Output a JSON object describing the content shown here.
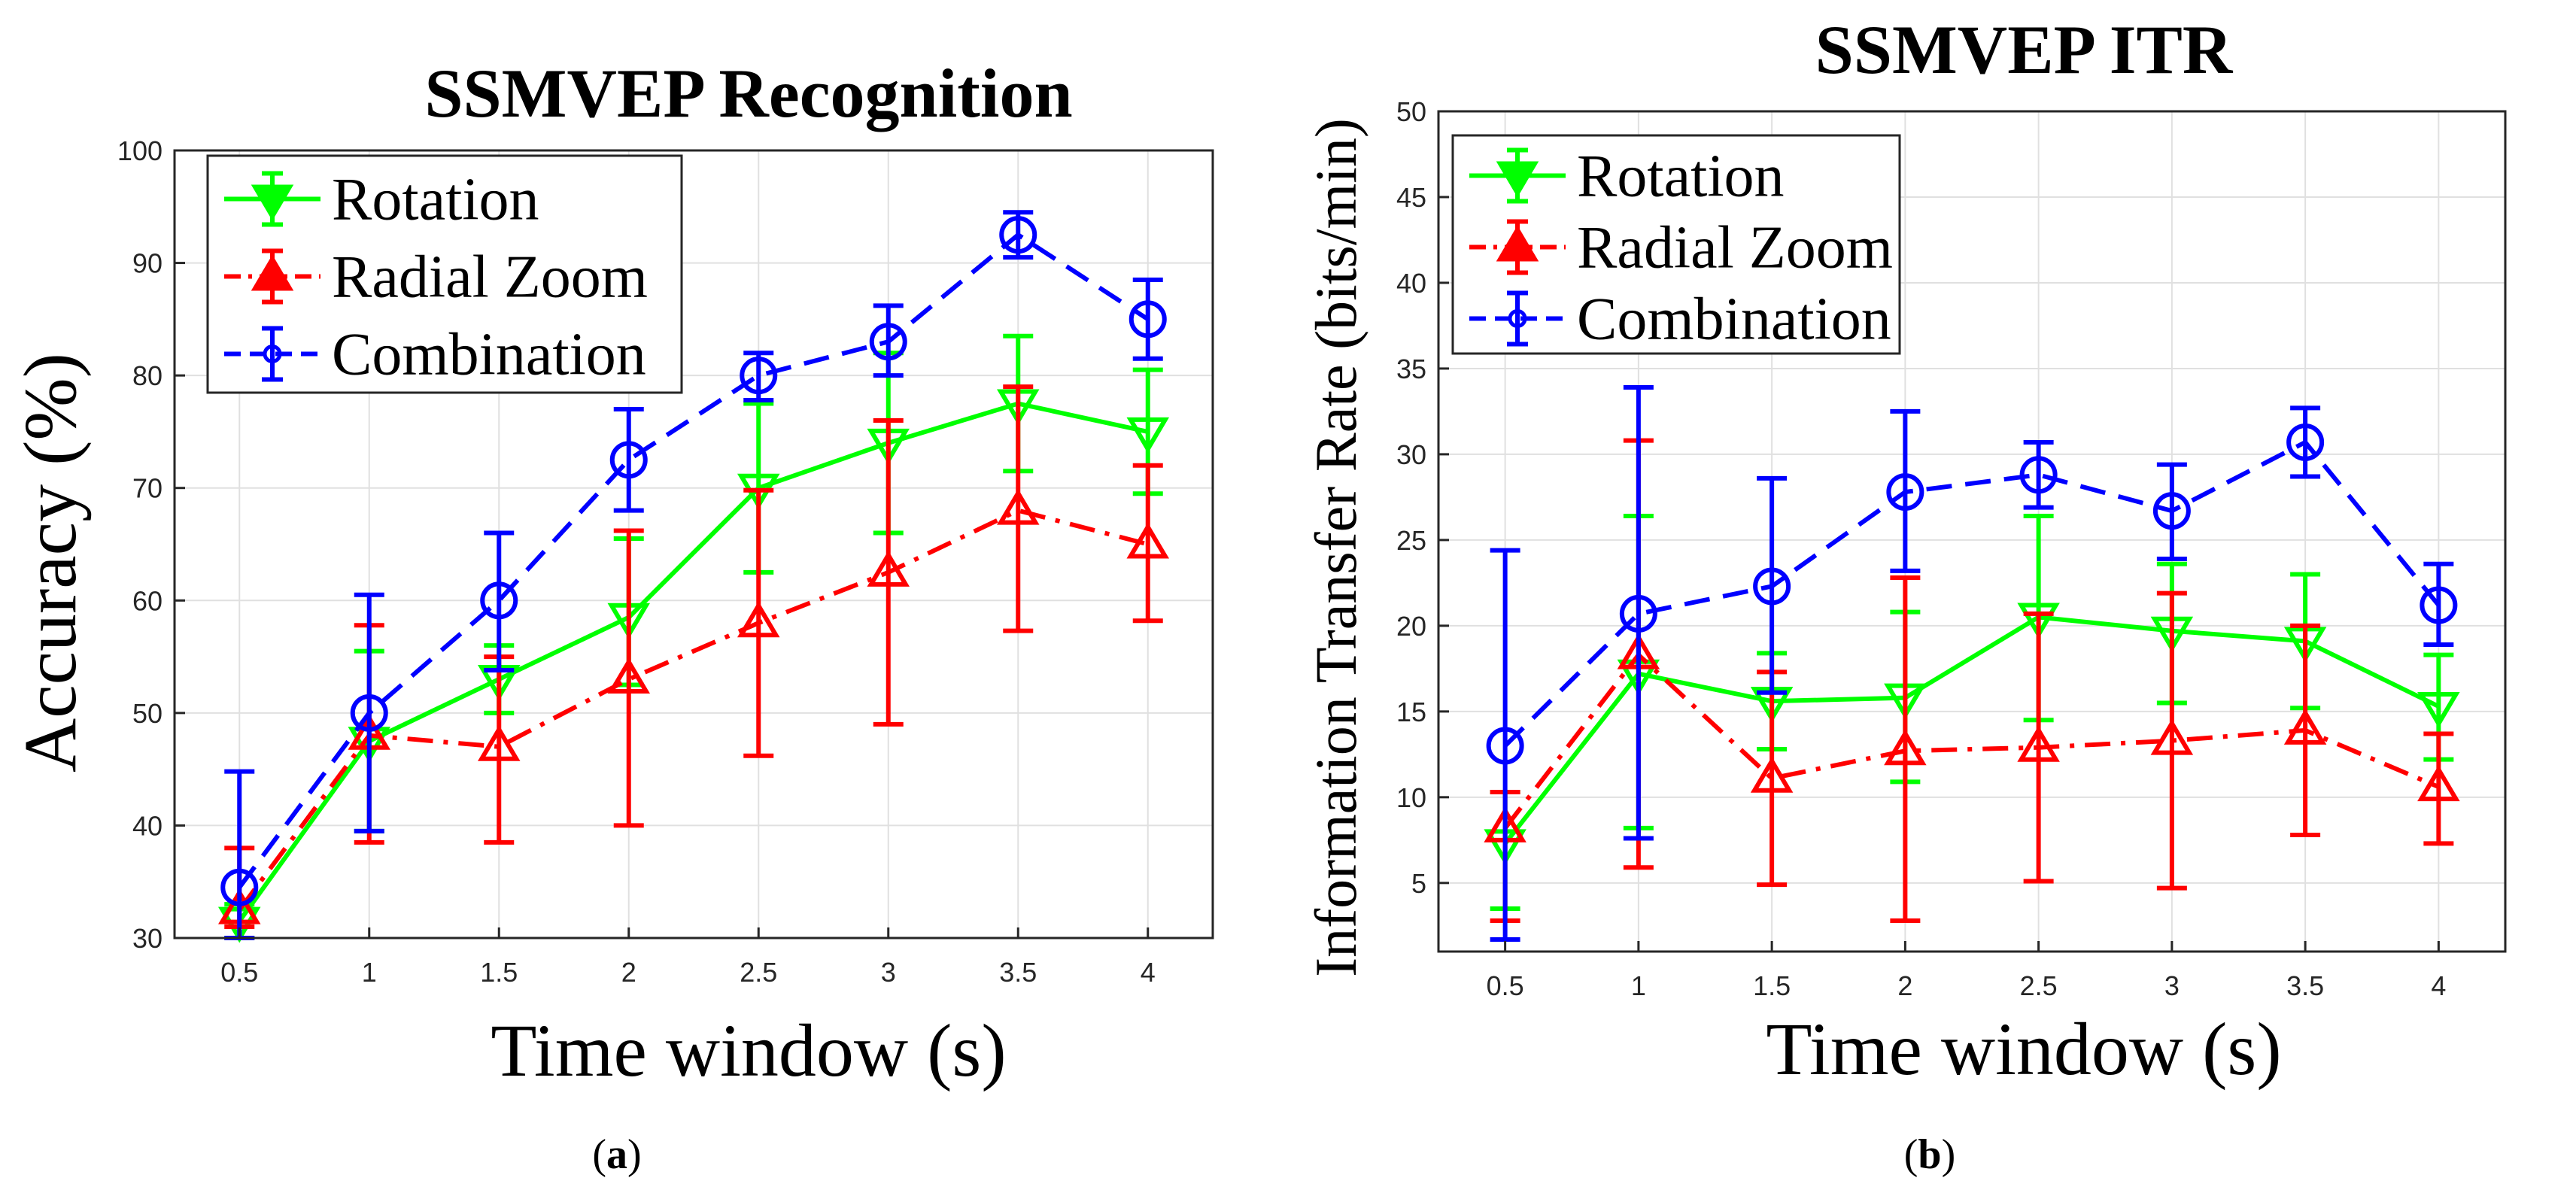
{
  "chart_data": [
    {
      "type": "line",
      "title": "SSMVEP Recognition",
      "xlabel": "Time window (s)",
      "ylabel": "Accuracy (%)",
      "caption_letter": "a",
      "x": [
        0.5,
        1,
        1.5,
        2,
        2.5,
        3,
        3.5,
        4
      ],
      "x_tick_labels": [
        "0.5",
        "1",
        "1.5",
        "2",
        "2.5",
        "3",
        "3.5",
        "4"
      ],
      "xlim": [
        0.25,
        4.25
      ],
      "ylim": [
        30,
        100
      ],
      "y_ticks": [
        30,
        40,
        50,
        60,
        70,
        80,
        90,
        100
      ],
      "grid": true,
      "legend_position": "top-left",
      "series": [
        {
          "name": "Rotation",
          "color": "#00ff00",
          "marker": "triangle-down",
          "line": "solid",
          "values": [
            31.5,
            47.5,
            53,
            58.5,
            70,
            74,
            77.5,
            75
          ],
          "err_low": [
            30,
            39.5,
            50,
            52.5,
            62.5,
            66,
            71.5,
            69.5
          ],
          "err_high": [
            33,
            55.5,
            56,
            65.5,
            77.5,
            82,
            83.5,
            80.5
          ]
        },
        {
          "name": "Radial Zoom",
          "color": "#ff0000",
          "marker": "triangle-up",
          "line": "dashdot",
          "values": [
            32.5,
            48,
            47,
            53,
            58,
            62.5,
            68,
            65
          ],
          "err_low": [
            31,
            38.5,
            38.5,
            40,
            46.2,
            49,
            57.3,
            58.2
          ],
          "err_high": [
            38,
            57.8,
            55,
            66.2,
            69.8,
            76,
            79,
            72
          ]
        },
        {
          "name": "Combination",
          "color": "#0000ff",
          "marker": "circle",
          "line": "dashed",
          "values": [
            34.5,
            50,
            60,
            72.5,
            80,
            83,
            92.5,
            85
          ],
          "err_low": [
            30,
            39.5,
            53.8,
            68,
            77.8,
            80,
            90.5,
            81.5
          ],
          "err_high": [
            44.8,
            60.5,
            66,
            77,
            82,
            86.2,
            94.5,
            88.5
          ]
        }
      ]
    },
    {
      "type": "line",
      "title": "SSMVEP ITR",
      "xlabel": "Time window (s)",
      "ylabel": "Information Transfer Rate (bits/min)",
      "caption_letter": "b",
      "x": [
        0.5,
        1,
        1.5,
        2,
        2.5,
        3,
        3.5,
        4
      ],
      "x_tick_labels": [
        "0.5",
        "1",
        "1.5",
        "2",
        "2.5",
        "3",
        "3.5",
        "4"
      ],
      "xlim": [
        0.25,
        4.25
      ],
      "ylim": [
        1,
        50
      ],
      "y_ticks": [
        5,
        10,
        15,
        20,
        25,
        30,
        35,
        40,
        45,
        50
      ],
      "grid": true,
      "legend_position": "top-left",
      "series": [
        {
          "name": "Rotation",
          "color": "#00ff00",
          "marker": "triangle-down",
          "line": "solid",
          "values": [
            7.3,
            17.2,
            15.6,
            15.8,
            20.5,
            19.7,
            19.1,
            15.3
          ],
          "err_low": [
            3.5,
            8.2,
            12.8,
            10.9,
            14.5,
            15.5,
            15.2,
            12.2
          ],
          "err_high": [
            10.3,
            26.4,
            18.4,
            20.8,
            26.4,
            23.6,
            23,
            18.3
          ]
        },
        {
          "name": "Radial Zoom",
          "color": "#ff0000",
          "marker": "triangle-up",
          "line": "dashdot",
          "values": [
            8.2,
            18.3,
            11.1,
            12.7,
            12.9,
            13.3,
            13.9,
            10.6
          ],
          "err_low": [
            2.8,
            5.9,
            4.9,
            2.8,
            5.1,
            4.7,
            7.8,
            7.3
          ],
          "err_high": [
            10.3,
            30.8,
            17.3,
            22.8,
            20.7,
            21.9,
            20,
            13.7
          ]
        },
        {
          "name": "Combination",
          "color": "#0000ff",
          "marker": "circle",
          "line": "dashed",
          "values": [
            13,
            20.7,
            22.3,
            27.8,
            28.8,
            26.7,
            30.7,
            21.2
          ],
          "err_low": [
            1.7,
            7.6,
            16.1,
            23.2,
            26.9,
            23.9,
            28.7,
            18.9
          ],
          "err_high": [
            24.4,
            33.9,
            28.6,
            32.5,
            30.7,
            29.4,
            32.7,
            23.6
          ]
        }
      ]
    }
  ]
}
